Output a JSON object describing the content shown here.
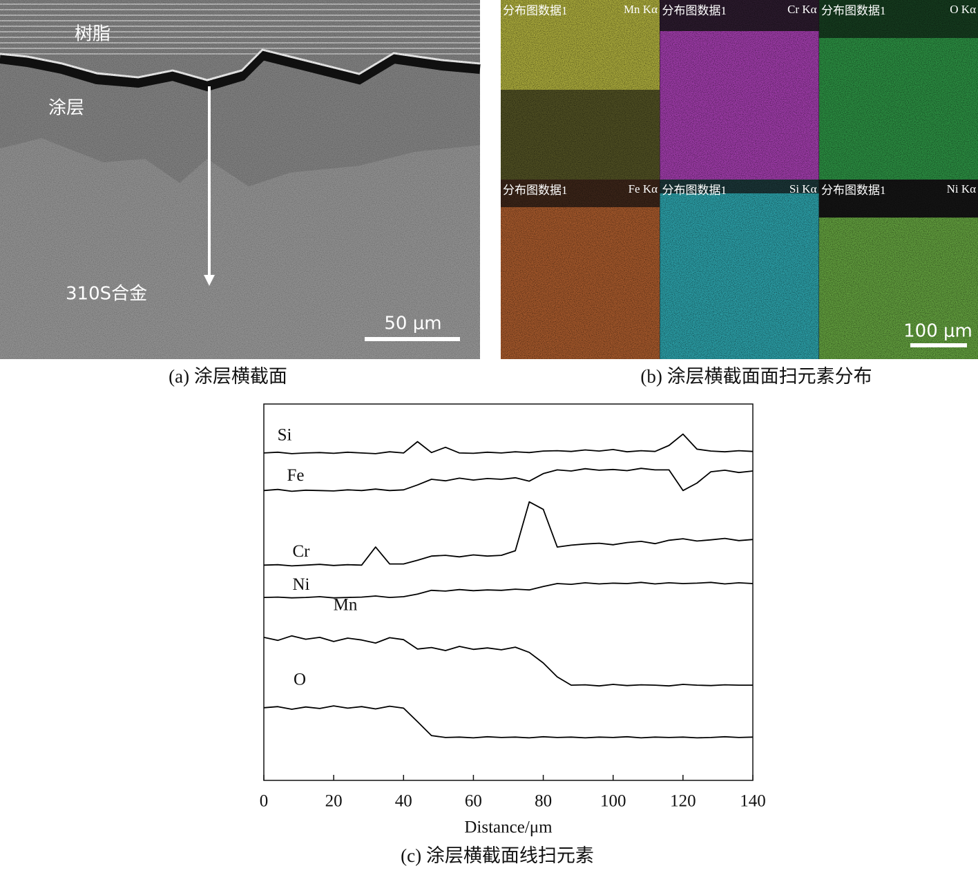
{
  "panel_a": {
    "labels": [
      "树脂",
      "涂层",
      "310S合金"
    ],
    "scale_bar": "50 μm",
    "caption": "(a) 涂层横截面"
  },
  "panel_b": {
    "maps": [
      {
        "title": "分布图数据1",
        "element": "Mn Kα"
      },
      {
        "title": "分布图数据1",
        "element": "Cr Kα"
      },
      {
        "title": "分布图数据1",
        "element": "O Kα"
      },
      {
        "title": "分布图数据1",
        "element": "Fe Kα"
      },
      {
        "title": "分布图数据1",
        "element": "Si Kα"
      },
      {
        "title": "分布图数据1",
        "element": "Ni Kα"
      }
    ],
    "scale_bar": "100 μm",
    "caption": "(b) 涂层横截面面扫元素分布"
  },
  "chart_data": {
    "type": "line",
    "caption": "(c) 涂层横截面线扫元素",
    "x_label": "Distance/μm",
    "x": [
      0,
      4,
      8,
      12,
      16,
      20,
      24,
      28,
      32,
      36,
      40,
      44,
      48,
      52,
      56,
      60,
      64,
      68,
      72,
      76,
      80,
      84,
      88,
      92,
      96,
      100,
      104,
      108,
      112,
      116,
      120,
      124,
      128,
      132,
      136,
      140
    ],
    "xlim": [
      0,
      140
    ],
    "xticks": [
      0,
      20,
      40,
      60,
      80,
      100,
      120,
      140
    ],
    "ylim": [
      0,
      100
    ],
    "series": [
      {
        "name": "Si",
        "color": "#000000",
        "values": [
          87,
          87.2,
          86.8,
          87,
          87.1,
          86.9,
          87.2,
          87,
          86.8,
          87.3,
          87,
          90,
          87.1,
          88.5,
          87,
          86.9,
          87.2,
          87,
          87.3,
          87.1,
          87.5,
          87.6,
          87.4,
          87.8,
          87.5,
          87.9,
          87.3,
          87.6,
          87.4,
          89,
          92,
          88,
          87.5,
          87.3,
          87.6,
          87.4
        ]
      },
      {
        "name": "Fe",
        "color": "#000000",
        "values": [
          77,
          77.3,
          76.8,
          77.1,
          77,
          76.9,
          77.2,
          77,
          77.4,
          77,
          77.2,
          78.5,
          80,
          79.6,
          80.3,
          79.8,
          80.2,
          80,
          80.4,
          79.5,
          81.5,
          82.5,
          82.2,
          82.8,
          82.4,
          82.6,
          82.3,
          82.9,
          82.5,
          82.5,
          77,
          79,
          82,
          82.4,
          81.8,
          82.2
        ]
      },
      {
        "name": "Cr",
        "color": "#000000",
        "values": [
          57.2,
          57.3,
          57,
          57.2,
          57.4,
          57.1,
          57.3,
          57.2,
          62,
          57.5,
          57.5,
          58.5,
          59.6,
          59.8,
          59.4,
          59.9,
          59.6,
          59.8,
          61,
          74,
          72,
          62,
          62.5,
          62.8,
          63,
          62.6,
          63.2,
          63.5,
          62.9,
          63.8,
          64.2,
          63.6,
          63.9,
          64.3,
          63.7,
          64
        ]
      },
      {
        "name": "Ni",
        "color": "#000000",
        "values": [
          48.6,
          48.7,
          48.5,
          48.6,
          48.8,
          48.5,
          48.6,
          48.7,
          49,
          48.6,
          48.8,
          49.5,
          50.5,
          50.3,
          50.7,
          50.4,
          50.6,
          50.5,
          50.8,
          50.6,
          51.5,
          52.3,
          52.1,
          52.5,
          52.2,
          52.4,
          52.3,
          52.6,
          52.2,
          52.5,
          52.3,
          52.4,
          52.6,
          52.2,
          52.5,
          52.3
        ]
      },
      {
        "name": "Mn",
        "color": "#000000",
        "values": [
          38,
          37.2,
          38.4,
          37.5,
          38,
          36.9,
          37.8,
          37.3,
          36.5,
          37.9,
          37.4,
          34.9,
          35.3,
          34.5,
          35.6,
          34.8,
          35.2,
          34.7,
          35.4,
          34,
          31.2,
          27.5,
          25.3,
          25.4,
          25.1,
          25.5,
          25.2,
          25.4,
          25.3,
          25.1,
          25.5,
          25.3,
          25.2,
          25.4,
          25.3,
          25.3
        ]
      },
      {
        "name": "O",
        "color": "#000000",
        "values": [
          19.3,
          19.6,
          18.9,
          19.5,
          19.1,
          19.8,
          19.2,
          19.6,
          19,
          19.7,
          19.2,
          15.6,
          11.9,
          11.4,
          11.5,
          11.3,
          11.6,
          11.4,
          11.5,
          11.3,
          11.6,
          11.4,
          11.5,
          11.3,
          11.5,
          11.4,
          11.6,
          11.3,
          11.5,
          11.4,
          11.5,
          11.3,
          11.4,
          11.6,
          11.4,
          11.5
        ]
      }
    ]
  }
}
